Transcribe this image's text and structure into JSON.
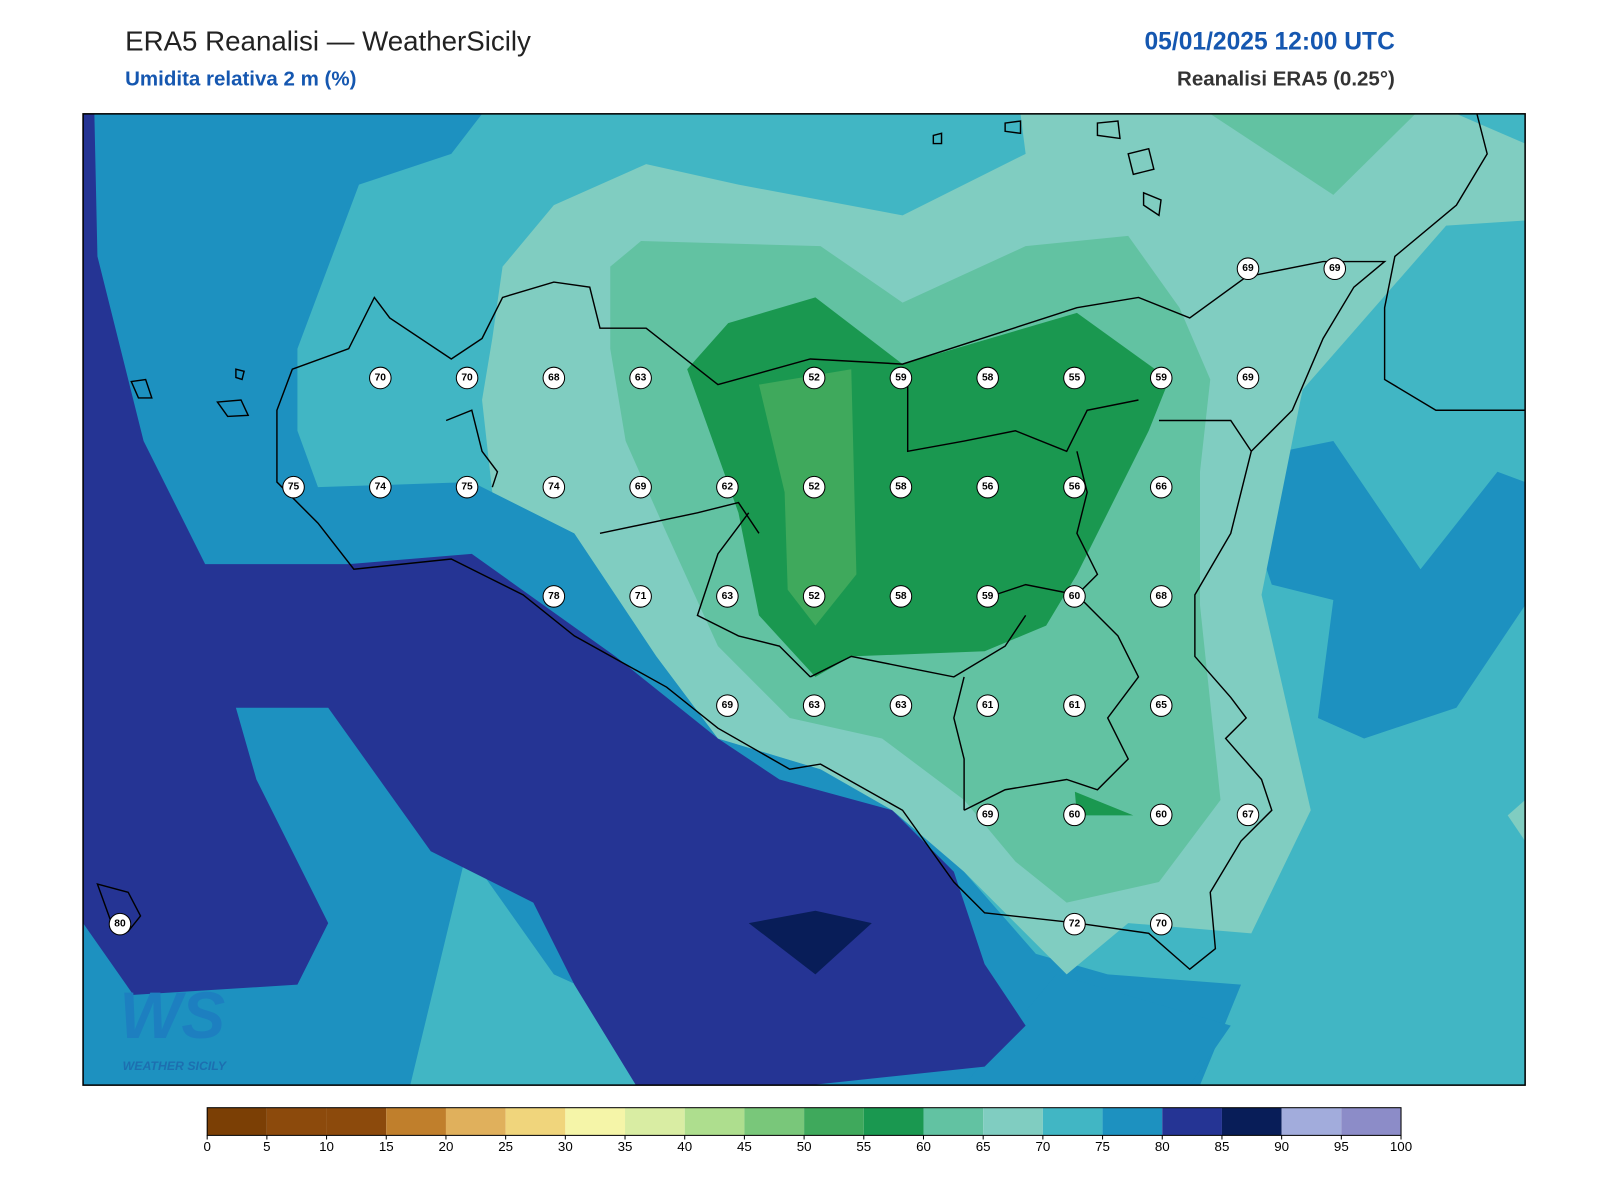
{
  "header": {
    "title": "ERA5 Reanalisi — WeatherSicily",
    "subtitle": "Umidita relativa 2 m (%)",
    "datetime": "05/01/2025 12:00 UTC",
    "source": "Reanalisi ERA5 (0.25°)"
  },
  "map": {
    "grid": [
      [
        null,
        null,
        null,
        null,
        null,
        null,
        null,
        null,
        null,
        null,
        null,
        null,
        null,
        69,
        69
      ],
      [
        null,
        null,
        null,
        70,
        70,
        68,
        63,
        null,
        52,
        59,
        58,
        55,
        59,
        69,
        null
      ],
      [
        null,
        null,
        75,
        74,
        75,
        74,
        69,
        62,
        52,
        58,
        56,
        56,
        66,
        null,
        null
      ],
      [
        null,
        null,
        null,
        null,
        null,
        78,
        71,
        63,
        52,
        58,
        59,
        60,
        68,
        null,
        null
      ],
      [
        null,
        null,
        null,
        null,
        null,
        null,
        null,
        69,
        63,
        63,
        61,
        61,
        65,
        null,
        null
      ],
      [
        null,
        null,
        null,
        null,
        null,
        null,
        null,
        null,
        null,
        null,
        69,
        60,
        60,
        67,
        null
      ],
      [
        80,
        null,
        null,
        null,
        null,
        null,
        null,
        null,
        null,
        null,
        null,
        72,
        70,
        null,
        null
      ]
    ]
  },
  "colorbar": {
    "ticks": [
      0,
      5,
      10,
      15,
      20,
      25,
      30,
      35,
      40,
      45,
      50,
      55,
      60,
      65,
      70,
      75,
      80,
      85,
      90,
      95,
      100
    ],
    "colors": [
      "#7b3f05",
      "#8c4a0c",
      "#8c4a0c",
      "#c07f2c",
      "#e0b05c",
      "#f0d57c",
      "#f5f5a8",
      "#d9eda3",
      "#aede8e",
      "#79c77a",
      "#3fa95c",
      "#1a9850",
      "#62c2a2",
      "#80cdc1",
      "#41b6c4",
      "#1d91c0",
      "#253494",
      "#081d58",
      "#a2acdc",
      "#8c8cc8"
    ]
  },
  "logo": {
    "mark": "WS",
    "name": "WEATHER SICILY"
  }
}
